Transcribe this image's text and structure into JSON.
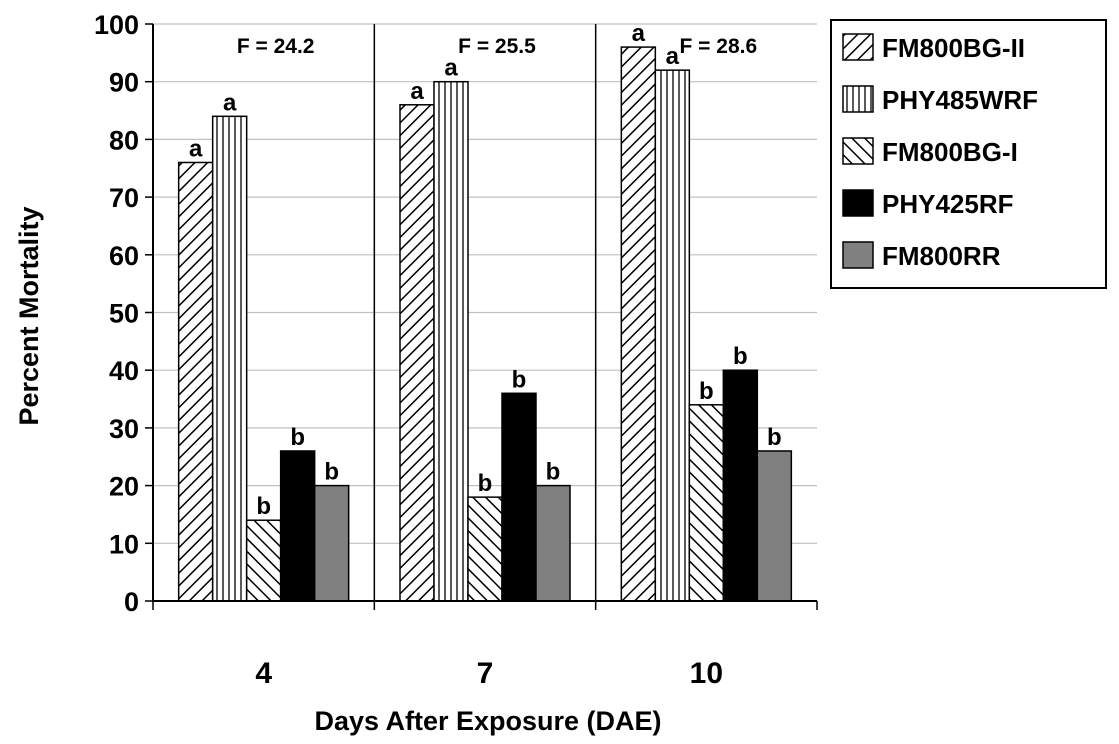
{
  "chart_data": {
    "type": "bar",
    "title": "",
    "xlabel": "Days After Exposure (DAE)",
    "ylabel": "Percent Mortality",
    "ylim": [
      0,
      100
    ],
    "yticks": [
      0,
      10,
      20,
      30,
      40,
      50,
      60,
      70,
      80,
      90,
      100
    ],
    "grid": true,
    "legend_position": "right",
    "categories": [
      "4",
      "7",
      "10"
    ],
    "f_stats": [
      "F = 24.2",
      "F = 25.5",
      "F = 28.6"
    ],
    "series": [
      {
        "name": "FM800BG-II",
        "pattern": "diagonal-forward",
        "values": [
          76,
          86,
          96
        ],
        "letters": [
          "a",
          "a",
          "a"
        ]
      },
      {
        "name": "PHY485WRF",
        "pattern": "vertical",
        "values": [
          84,
          90,
          92
        ],
        "letters": [
          "a",
          "a",
          "a"
        ]
      },
      {
        "name": "FM800BG-I",
        "pattern": "diagonal-back",
        "values": [
          14,
          18,
          34
        ],
        "letters": [
          "b",
          "b",
          "b"
        ]
      },
      {
        "name": "PHY425RF",
        "pattern": "solid-black",
        "color": "#000000",
        "values": [
          26,
          36,
          40
        ],
        "letters": [
          "b",
          "b",
          "b"
        ]
      },
      {
        "name": "FM800RR",
        "pattern": "solid-gray",
        "color": "#808080",
        "values": [
          20,
          20,
          26
        ],
        "letters": [
          "b",
          "b",
          "b"
        ]
      }
    ]
  }
}
